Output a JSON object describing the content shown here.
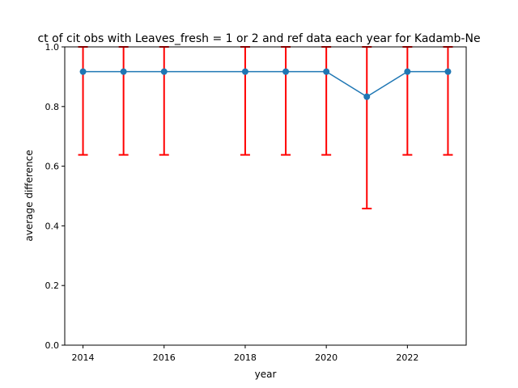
{
  "chart_data": {
    "type": "line",
    "title": "ct of cit obs with Leaves_fresh = 1 or 2 and ref data each year for Kadamb-Ne",
    "xlabel": "year",
    "ylabel": "average difference",
    "x": [
      2014,
      2015,
      2016,
      2018,
      2019,
      2020,
      2021,
      2022,
      2023
    ],
    "series": [
      {
        "values": [
          0.917,
          0.917,
          0.917,
          0.917,
          0.917,
          0.917,
          0.833,
          0.917,
          0.917
        ],
        "error_lower": [
          0.638,
          0.638,
          0.638,
          0.638,
          0.638,
          0.638,
          0.458,
          0.638,
          0.638
        ],
        "error_upper": [
          1.0,
          1.0,
          1.0,
          1.0,
          1.0,
          1.0,
          1.0,
          1.0,
          1.0
        ],
        "line_color": "#1f77b4",
        "errorbar_color": "#ff0000"
      }
    ],
    "xlim": [
      2013.55,
      2023.45
    ],
    "ylim": [
      0.0,
      1.0
    ],
    "xticks": [
      "2014",
      "2016",
      "2018",
      "2020",
      "2022"
    ],
    "yticks": [
      "0.0",
      "0.2",
      "0.4",
      "0.6",
      "0.8",
      "1.0"
    ],
    "grid": false,
    "legend": "none"
  }
}
